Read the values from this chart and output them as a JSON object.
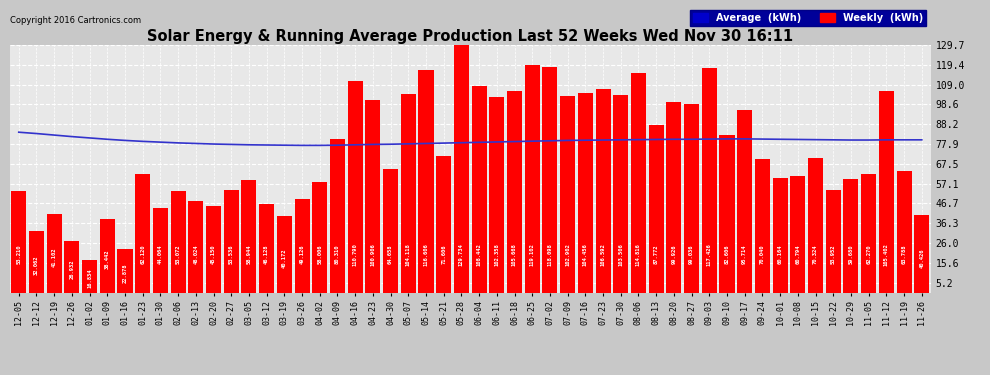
{
  "title": "Solar Energy & Running Average Production Last 52 Weeks Wed Nov 30 16:11",
  "copyright": "Copyright 2016 Cartronics.com",
  "ylabel_right_ticks": [
    5.2,
    15.6,
    26.0,
    36.3,
    46.7,
    57.1,
    67.5,
    77.9,
    88.2,
    98.6,
    109.0,
    119.4,
    129.7
  ],
  "bar_color": "#ff0000",
  "avg_line_color": "#3333cc",
  "background_color": "#c8c8c8",
  "plot_bg_color": "#e8e8e8",
  "grid_color": "#ffffff",
  "categories": [
    "12-05",
    "12-12",
    "12-19",
    "12-26",
    "01-02",
    "01-09",
    "01-16",
    "01-23",
    "01-30",
    "02-06",
    "02-13",
    "02-20",
    "02-27",
    "03-05",
    "03-12",
    "03-19",
    "03-26",
    "04-02",
    "04-09",
    "04-16",
    "04-23",
    "04-30",
    "05-07",
    "05-14",
    "05-21",
    "05-28",
    "06-04",
    "06-11",
    "06-18",
    "06-25",
    "07-02",
    "07-09",
    "07-16",
    "07-23",
    "07-30",
    "08-06",
    "08-13",
    "08-20",
    "08-27",
    "09-03",
    "09-10",
    "09-17",
    "09-24",
    "10-01",
    "10-08",
    "10-15",
    "10-22",
    "10-29",
    "11-05",
    "11-12",
    "11-19",
    "11-26"
  ],
  "weekly_values": [
    53.21,
    32.062,
    41.102,
    26.932,
    16.834,
    38.442,
    22.878,
    62.12,
    44.064,
    53.072,
    48.024,
    45.15,
    53.536,
    58.944,
    46.128,
    40.172,
    49.126,
    58.006,
    80.31,
    110.79,
    100.906,
    64.658,
    104.118,
    116.606,
    71.606,
    129.734,
    108.442,
    102.358,
    105.668,
    119.102,
    118.098,
    102.902,
    104.456,
    106.592,
    103.506,
    114.816,
    87.772,
    99.926,
    99.036,
    117.426,
    82.606,
    95.714,
    70.04,
    60.164,
    60.794,
    70.324,
    53.952,
    59.68,
    62.27,
    105.402,
    63.788,
    40.426
  ],
  "avg_values": [
    84.0,
    83.3,
    82.5,
    81.7,
    81.0,
    80.3,
    79.7,
    79.2,
    78.8,
    78.4,
    78.1,
    77.8,
    77.6,
    77.4,
    77.3,
    77.2,
    77.1,
    77.1,
    77.2,
    77.4,
    77.6,
    77.7,
    77.9,
    78.1,
    78.3,
    78.5,
    78.7,
    78.9,
    79.1,
    79.3,
    79.5,
    79.7,
    79.8,
    79.9,
    80.0,
    80.1,
    80.2,
    80.3,
    80.3,
    80.4,
    80.5,
    80.5,
    80.4,
    80.3,
    80.2,
    80.1,
    80.0,
    79.9,
    79.9,
    80.0,
    80.0,
    80.0
  ],
  "legend_avg_color": "#0000cc",
  "legend_avg_label": "Average  (kWh)",
  "legend_weekly_color": "#ff0000",
  "legend_weekly_label": "Weekly  (kWh)"
}
